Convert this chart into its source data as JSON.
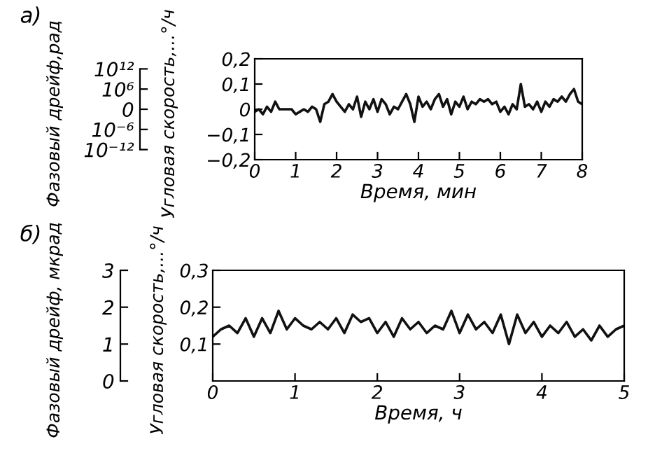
{
  "chart_data": [
    {
      "type": "line",
      "xlabel": "Время, мин",
      "ylabel": "Угловая скорость,...°/ч",
      "y2label": "Фазовый дрейф,рад",
      "annotations": [
        "а)"
      ],
      "xlim": [
        0,
        8
      ],
      "xticks": [
        0,
        1,
        2,
        3,
        4,
        5,
        6,
        7,
        8
      ],
      "ylim": [
        -0.2,
        0.2
      ],
      "yticks": [
        {
          "value": -0.2,
          "label": "−0,2"
        },
        {
          "value": -0.1,
          "label": "−0,1"
        },
        0,
        {
          "value": 0.1,
          "label": "0,1"
        },
        {
          "value": 0.2,
          "label": "0,2"
        }
      ],
      "y2_categories": [
        "10¹²",
        "10⁶",
        "0",
        "10⁻⁶",
        "10⁻¹²"
      ],
      "grid": false,
      "legend": false,
      "x": [
        0,
        0.1,
        0.2,
        0.3,
        0.4,
        0.5,
        0.6,
        0.7,
        0.8,
        0.9,
        1.0,
        1.1,
        1.2,
        1.3,
        1.4,
        1.5,
        1.6,
        1.7,
        1.8,
        1.9,
        2.0,
        2.1,
        2.2,
        2.3,
        2.4,
        2.5,
        2.6,
        2.7,
        2.8,
        2.9,
        3.0,
        3.1,
        3.2,
        3.3,
        3.4,
        3.5,
        3.6,
        3.7,
        3.8,
        3.9,
        4.0,
        4.1,
        4.2,
        4.3,
        4.4,
        4.5,
        4.6,
        4.7,
        4.8,
        4.9,
        5.0,
        5.1,
        5.2,
        5.3,
        5.4,
        5.5,
        5.6,
        5.7,
        5.8,
        5.9,
        6.0,
        6.1,
        6.2,
        6.3,
        6.4,
        6.5,
        6.6,
        6.7,
        6.8,
        6.9,
        7.0,
        7.1,
        7.2,
        7.3,
        7.4,
        7.5,
        7.6,
        7.7,
        7.8,
        7.9,
        8.0
      ],
      "series": [
        {
          "color": "#111111",
          "values": [
            -0.01,
            0.0,
            -0.02,
            0.01,
            -0.01,
            0.03,
            0.0,
            0.0,
            0.0,
            0.0,
            -0.02,
            -0.01,
            0.0,
            -0.01,
            0.01,
            0.0,
            -0.05,
            0.02,
            0.03,
            0.06,
            0.03,
            0.01,
            -0.01,
            0.02,
            0.0,
            0.05,
            -0.03,
            0.03,
            0.0,
            0.04,
            -0.01,
            0.04,
            0.02,
            -0.02,
            0.01,
            0.0,
            0.03,
            0.06,
            0.02,
            -0.05,
            0.05,
            0.01,
            0.03,
            0.0,
            0.04,
            0.06,
            0.01,
            0.04,
            -0.02,
            0.03,
            0.01,
            0.05,
            0.0,
            0.03,
            0.02,
            0.04,
            0.03,
            0.04,
            0.02,
            0.03,
            -0.01,
            0.01,
            -0.02,
            0.02,
            0.0,
            0.1,
            0.01,
            0.02,
            0.0,
            0.03,
            -0.01,
            0.03,
            0.01,
            0.04,
            0.03,
            0.05,
            0.03,
            0.06,
            0.08,
            0.03,
            0.02
          ]
        }
      ]
    },
    {
      "type": "line",
      "xlabel": "Время, ч",
      "ylabel": "Угловая скорость,...°/ч",
      "y2label": "Фазовый дрейф, мкрад",
      "annotations": [
        "б)"
      ],
      "xlim": [
        0,
        5
      ],
      "xticks": [
        0,
        1,
        2,
        3,
        4,
        5
      ],
      "ylim": [
        0,
        0.3
      ],
      "yticks": [
        {
          "value": 0.1,
          "label": "0,1"
        },
        {
          "value": 0.2,
          "label": "0,2"
        },
        {
          "value": 0.3,
          "label": "0,3"
        }
      ],
      "y2lim": [
        0,
        3
      ],
      "y2ticks": [
        0,
        1,
        2,
        3
      ],
      "grid": false,
      "legend": false,
      "x": [
        0,
        0.1,
        0.2,
        0.3,
        0.4,
        0.5,
        0.6,
        0.7,
        0.8,
        0.9,
        1.0,
        1.1,
        1.2,
        1.3,
        1.4,
        1.5,
        1.6,
        1.7,
        1.8,
        1.9,
        2.0,
        2.1,
        2.2,
        2.3,
        2.4,
        2.5,
        2.6,
        2.7,
        2.8,
        2.9,
        3.0,
        3.1,
        3.2,
        3.3,
        3.4,
        3.5,
        3.6,
        3.7,
        3.8,
        3.9,
        4.0,
        4.1,
        4.2,
        4.3,
        4.4,
        4.5,
        4.6,
        4.7,
        4.8,
        4.9,
        5.0
      ],
      "series": [
        {
          "color": "#111111",
          "values": [
            0.12,
            0.14,
            0.15,
            0.13,
            0.17,
            0.12,
            0.17,
            0.13,
            0.19,
            0.14,
            0.17,
            0.15,
            0.14,
            0.16,
            0.14,
            0.17,
            0.13,
            0.18,
            0.16,
            0.17,
            0.13,
            0.16,
            0.12,
            0.17,
            0.14,
            0.16,
            0.13,
            0.15,
            0.14,
            0.19,
            0.13,
            0.18,
            0.14,
            0.16,
            0.13,
            0.18,
            0.1,
            0.18,
            0.13,
            0.16,
            0.12,
            0.15,
            0.13,
            0.16,
            0.12,
            0.14,
            0.11,
            0.15,
            0.12,
            0.14,
            0.15
          ]
        }
      ]
    }
  ]
}
